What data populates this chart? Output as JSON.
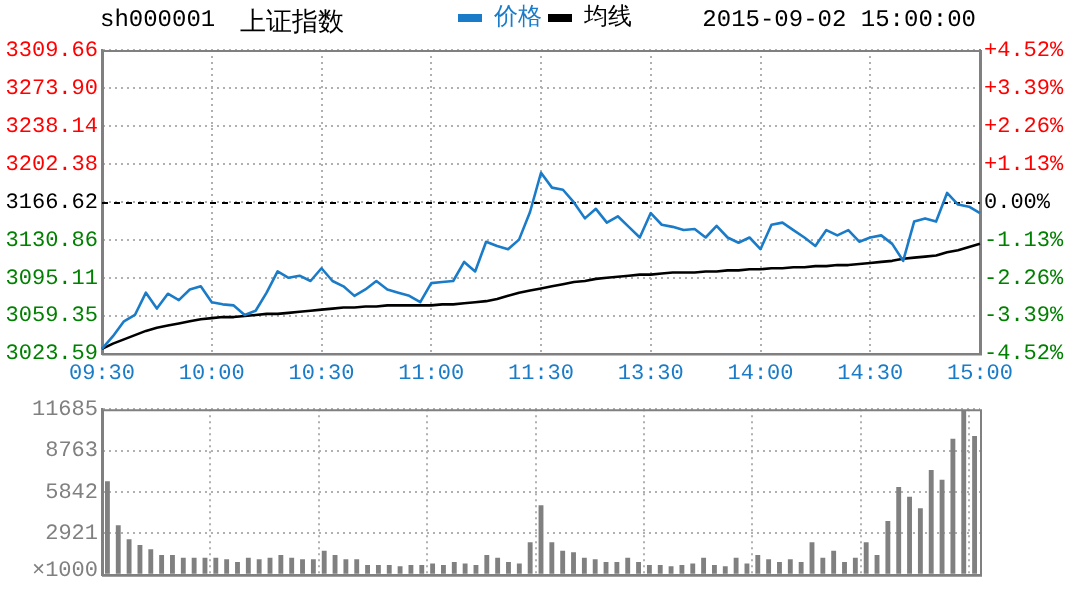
{
  "chart_data": [
    {
      "type": "line",
      "title": "上证指数",
      "subtitle": "sh000001",
      "annotations": [
        "2015-09-02 15:00:00"
      ],
      "categories": [
        "09:30",
        null,
        null,
        null,
        null,
        null,
        null,
        null,
        null,
        null,
        "10:00",
        null,
        null,
        null,
        null,
        null,
        null,
        null,
        null,
        null,
        "10:30",
        null,
        null,
        null,
        null,
        null,
        null,
        null,
        null,
        null,
        "11:00",
        null,
        null,
        null,
        null,
        null,
        null,
        null,
        null,
        null,
        "11:30",
        null,
        null,
        null,
        null,
        null,
        null,
        null,
        null,
        null,
        "13:30",
        null,
        null,
        null,
        null,
        null,
        null,
        null,
        null,
        null,
        "14:00",
        null,
        null,
        null,
        null,
        null,
        null,
        null,
        null,
        null,
        "14:30",
        null,
        null,
        null,
        null,
        null,
        null,
        null,
        null,
        null,
        "15:00"
      ],
      "series": [
        {
          "name": "价格",
          "color": "#1a7cc8",
          "values": [
            3028,
            3040,
            3054,
            3060,
            3081,
            3066,
            3080,
            3074,
            3084,
            3087,
            3072,
            3070,
            3069,
            3060,
            3064,
            3081,
            3101,
            3095,
            3097,
            3092,
            3104,
            3092,
            3087,
            3078,
            3084,
            3092,
            3084,
            3081,
            3078,
            3072,
            3090,
            3091,
            3092,
            3110,
            3101,
            3129,
            3125,
            3122,
            3131,
            3157,
            3194,
            3180,
            3178,
            3166,
            3151,
            3160,
            3147,
            3153,
            3143,
            3133,
            3156,
            3145,
            3143,
            3140,
            3141,
            3133,
            3144,
            3133,
            3128,
            3133,
            3122,
            3145,
            3147,
            3140,
            3133,
            3125,
            3140,
            3135,
            3140,
            3129,
            3133,
            3135,
            3127,
            3111,
            3148,
            3151,
            3148,
            3175,
            3164,
            3162,
            3156
          ]
        },
        {
          "name": "均线",
          "color": "#000000",
          "values": [
            3028,
            3033,
            3037,
            3041,
            3045,
            3048,
            3050,
            3052,
            3054,
            3056,
            3057,
            3058,
            3058,
            3059,
            3060,
            3061,
            3061,
            3062,
            3063,
            3064,
            3065,
            3066,
            3067,
            3067,
            3068,
            3068,
            3069,
            3069,
            3069,
            3069,
            3069,
            3070,
            3070,
            3071,
            3072,
            3073,
            3075,
            3078,
            3081,
            3083,
            3085,
            3087,
            3089,
            3091,
            3092,
            3094,
            3095,
            3096,
            3097,
            3098,
            3098,
            3099,
            3100,
            3100,
            3100,
            3101,
            3101,
            3102,
            3102,
            3103,
            3103,
            3104,
            3104,
            3105,
            3105,
            3106,
            3106,
            3107,
            3107,
            3108,
            3109,
            3110,
            3111,
            3113,
            3114,
            3115,
            3116,
            3119,
            3121,
            3124,
            3127
          ]
        }
      ],
      "ylim": [
        3023.59,
        3309.66
      ],
      "yticks": [
        3023.59,
        3059.35,
        3095.11,
        3130.86,
        3166.62,
        3202.38,
        3238.14,
        {
          "value": 3273.9,
          "label": "3273.90"
        },
        3309.66
      ],
      "y2lim": [
        -4.52,
        4.52
      ],
      "y2ticks": [
        {
          "value": -4.52,
          "label": "-4.52%"
        },
        {
          "value": -3.39,
          "label": "-3.39%"
        },
        {
          "value": -2.26,
          "label": "-2.26%"
        },
        {
          "value": -1.13,
          "label": "-1.13%"
        },
        {
          "value": 0,
          "label": "0.00%"
        },
        {
          "value": 1.13,
          "label": "+1.13%"
        },
        {
          "value": 2.26,
          "label": "+2.26%"
        },
        {
          "value": 3.39,
          "label": "+3.39%"
        },
        {
          "value": 4.52,
          "label": "+4.52%"
        }
      ],
      "ref_lines": [
        {
          "axis": "y",
          "value": 3166.62,
          "color": "#000000",
          "line_style": "dashed"
        }
      ],
      "grid": true,
      "legend": "top",
      "marker": "none"
    },
    {
      "type": "bar",
      "ylabel": "×1000",
      "categories": [
        null,
        null,
        null,
        null,
        null,
        null,
        null,
        null,
        null,
        null,
        null,
        null,
        null,
        null,
        null,
        null,
        null,
        null,
        null,
        null,
        null,
        null,
        null,
        null,
        null,
        null,
        null,
        null,
        null,
        null,
        null,
        null,
        null,
        null,
        null,
        null,
        null,
        null,
        null,
        null,
        null,
        null,
        null,
        null,
        null,
        null,
        null,
        null,
        null,
        null,
        null,
        null,
        null,
        null,
        null,
        null,
        null,
        null,
        null,
        null,
        null,
        null,
        null,
        null,
        null,
        null,
        null,
        null,
        null,
        null,
        null,
        null,
        null,
        null,
        null,
        null,
        null,
        null,
        null,
        null,
        null
      ],
      "values": [
        6600,
        3500,
        2500,
        2100,
        1800,
        1400,
        1400,
        1200,
        1200,
        1200,
        1200,
        1100,
        900,
        1200,
        1100,
        1200,
        1400,
        1200,
        1100,
        1100,
        1700,
        1400,
        1100,
        1100,
        700,
        700,
        700,
        600,
        700,
        700,
        800,
        700,
        900,
        800,
        700,
        1400,
        1200,
        900,
        800,
        2300,
        4900,
        2300,
        1700,
        1600,
        1200,
        1100,
        900,
        900,
        1200,
        900,
        700,
        700,
        600,
        700,
        800,
        1200,
        700,
        600,
        1200,
        800,
        1400,
        1100,
        900,
        1100,
        900,
        2300,
        1200,
        1700,
        900,
        1200,
        2300,
        1400,
        3800,
        6200,
        5500,
        4700,
        7400,
        6700,
        9600,
        11600,
        9800
      ],
      "color": "#808080",
      "ylim": [
        0,
        11685
      ],
      "yticks": [
        {
          "value": 0,
          "label": null
        },
        2921,
        5842,
        8763,
        11685
      ],
      "grid": true,
      "tick_labels": "y"
    }
  ]
}
